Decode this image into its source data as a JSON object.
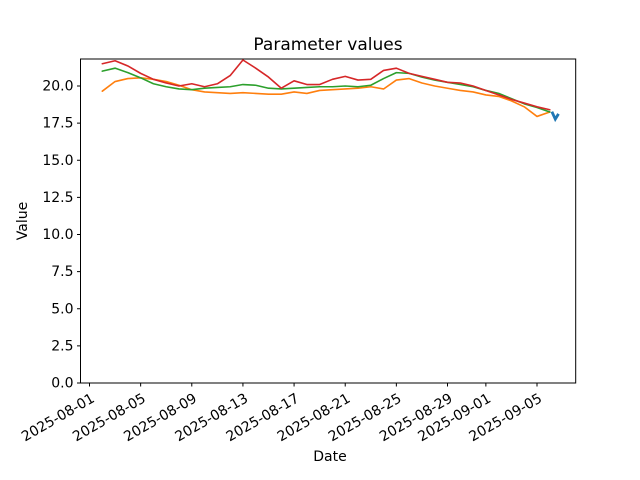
{
  "chart_data": {
    "type": "line",
    "title": "Parameter values",
    "xlabel": "Date",
    "ylabel": "Value",
    "grid": false,
    "legend": "none",
    "ylim": [
      0.0,
      21.8
    ],
    "y_tick_labels": [
      "0.0",
      "2.5",
      "5.0",
      "7.5",
      "10.0",
      "12.5",
      "15.0",
      "17.5",
      "20.0"
    ],
    "x_ticks": [
      {
        "day": 0,
        "label": "2025-08-01"
      },
      {
        "day": 4,
        "label": "2025-08-05"
      },
      {
        "day": 8,
        "label": "2025-08-09"
      },
      {
        "day": 12,
        "label": "2025-08-13"
      },
      {
        "day": 16,
        "label": "2025-08-17"
      },
      {
        "day": 20,
        "label": "2025-08-21"
      },
      {
        "day": 24,
        "label": "2025-08-25"
      },
      {
        "day": 28,
        "label": "2025-08-29"
      },
      {
        "day": 31,
        "label": "2025-09-01"
      },
      {
        "day": 35,
        "label": "2025-09-05"
      }
    ],
    "dates": [
      "2025-08-02",
      "2025-08-03",
      "2025-08-04",
      "2025-08-05",
      "2025-08-06",
      "2025-08-07",
      "2025-08-08",
      "2025-08-09",
      "2025-08-10",
      "2025-08-11",
      "2025-08-12",
      "2025-08-13",
      "2025-08-14",
      "2025-08-15",
      "2025-08-16",
      "2025-08-17",
      "2025-08-18",
      "2025-08-19",
      "2025-08-20",
      "2025-08-21",
      "2025-08-22",
      "2025-08-23",
      "2025-08-24",
      "2025-08-25",
      "2025-08-26",
      "2025-08-27",
      "2025-08-28",
      "2025-08-29",
      "2025-08-30",
      "2025-08-31",
      "2025-09-01",
      "2025-09-02",
      "2025-09-03",
      "2025-09-04",
      "2025-09-05",
      "2025-09-06"
    ],
    "series": [
      {
        "name": "series-orange",
        "color": "#ff7f0e",
        "values": [
          19.65,
          20.3,
          20.5,
          20.55,
          20.45,
          20.3,
          20.05,
          19.75,
          19.6,
          19.55,
          19.5,
          19.55,
          19.5,
          19.45,
          19.45,
          19.6,
          19.5,
          19.7,
          19.75,
          19.8,
          19.85,
          19.95,
          19.8,
          20.4,
          20.5,
          20.2,
          20.0,
          19.85,
          19.7,
          19.6,
          19.4,
          19.3,
          19.0,
          18.6,
          17.95,
          18.25
        ]
      },
      {
        "name": "series-green",
        "color": "#2ca02c",
        "values": [
          21.0,
          21.2,
          20.9,
          20.55,
          20.15,
          19.95,
          19.8,
          19.75,
          19.85,
          19.9,
          19.95,
          20.1,
          20.05,
          19.85,
          19.8,
          19.85,
          19.9,
          19.95,
          19.95,
          20.0,
          19.95,
          20.05,
          20.5,
          20.9,
          20.85,
          20.6,
          20.4,
          20.25,
          20.1,
          19.95,
          19.7,
          19.5,
          19.15,
          18.8,
          18.55,
          18.25
        ]
      },
      {
        "name": "series-red",
        "color": "#d62728",
        "values": [
          21.5,
          21.7,
          21.35,
          20.85,
          20.45,
          20.2,
          20.0,
          20.15,
          19.95,
          20.15,
          20.7,
          21.75,
          21.2,
          20.6,
          19.85,
          20.35,
          20.1,
          20.1,
          20.45,
          20.65,
          20.4,
          20.45,
          21.05,
          21.2,
          20.85,
          20.65,
          20.45,
          20.25,
          20.2,
          20.0,
          19.7,
          19.4,
          19.1,
          18.85,
          18.6,
          18.4
        ]
      }
    ],
    "marker_series": {
      "name": "series-blue",
      "color": "#1f77b4",
      "marker": "caret-down",
      "points": [
        {
          "date": "2025-09-06",
          "value": 18.0
        }
      ]
    }
  }
}
